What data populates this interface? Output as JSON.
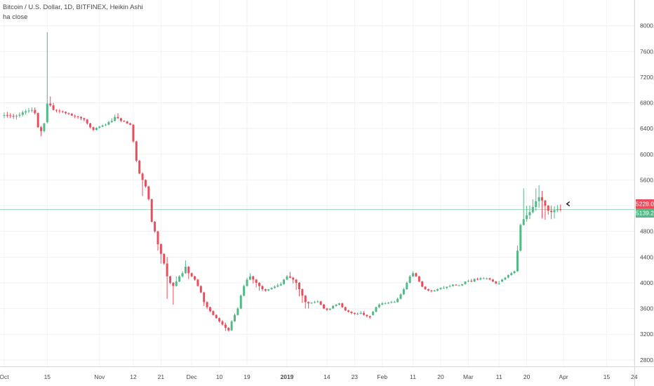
{
  "chart_data": {
    "type": "candlestick",
    "title": "Bitcoin / U.S. Dollar, 1D, BITFINEX, Heikin Ashi",
    "indicator": "ha close",
    "y_ticks": [
      8000,
      7600,
      7200,
      6800,
      6400,
      6000,
      5600,
      5200,
      4800,
      4400,
      4000,
      3600,
      3200,
      2800
    ],
    "y_tick_labels": [
      "8000.0",
      "7600.0",
      "7200.0",
      "6800.0",
      "6400.0",
      "6000.0",
      "5600.0",
      "5200.0",
      "4800.0",
      "4400.0",
      "4000.0",
      "3600.0",
      "3200.0",
      "2800.0"
    ],
    "ylim": [
      2700,
      8400
    ],
    "x_ticks": [
      {
        "label": "Oct",
        "day": 0,
        "bold": false
      },
      {
        "label": "15",
        "day": 14,
        "bold": false
      },
      {
        "label": "Nov",
        "day": 31,
        "bold": false
      },
      {
        "label": "12",
        "day": 42,
        "bold": false
      },
      {
        "label": "21",
        "day": 51,
        "bold": false
      },
      {
        "label": "Dec",
        "day": 61,
        "bold": false
      },
      {
        "label": "10",
        "day": 70,
        "bold": false
      },
      {
        "label": "19",
        "day": 79,
        "bold": false
      },
      {
        "label": "2019",
        "day": 92,
        "bold": true
      },
      {
        "label": "14",
        "day": 105,
        "bold": false
      },
      {
        "label": "23",
        "day": 114,
        "bold": false
      },
      {
        "label": "Feb",
        "day": 123,
        "bold": false
      },
      {
        "label": "11",
        "day": 133,
        "bold": false
      },
      {
        "label": "20",
        "day": 142,
        "bold": false
      },
      {
        "label": "Mar",
        "day": 151,
        "bold": false
      },
      {
        "label": "11",
        "day": 161,
        "bold": false
      },
      {
        "label": "20",
        "day": 170,
        "bold": false
      },
      {
        "label": "Apr",
        "day": 182,
        "bold": false
      },
      {
        "label": "15",
        "day": 196,
        "bold": false
      },
      {
        "label": "24",
        "day": 205,
        "bold": false
      }
    ],
    "up_color": "#53b987",
    "down_color": "#eb4d5c",
    "price_line": 5139.2,
    "price_labels": [
      {
        "value": 5228.0,
        "text": "5228.0",
        "color": "#eb4d5c"
      },
      {
        "value": 5139.2,
        "text": "5139.2",
        "color": "#53b987"
      }
    ],
    "candles_o": [
      6600,
      6610,
      6605,
      6598,
      6590,
      6600,
      6615,
      6650,
      6670,
      6680,
      6690,
      6640,
      6420,
      6360,
      6500,
      6790,
      6760,
      6690,
      6680,
      6670,
      6660,
      6640,
      6630,
      6600,
      6590,
      6580,
      6560,
      6540,
      6480,
      6420,
      6380,
      6410,
      6430,
      6450,
      6460,
      6500,
      6520,
      6580,
      6560,
      6520,
      6510,
      6480,
      6460,
      6200,
      5900,
      5700,
      5600,
      5500,
      5300,
      4950,
      4800,
      4600,
      4450,
      4300,
      4100,
      4000,
      3950,
      4020,
      4100,
      4150,
      4250,
      4150,
      4100,
      4050,
      3950,
      3850,
      3700,
      3620,
      3560,
      3500,
      3450,
      3400,
      3350,
      3300,
      3260,
      3400,
      3500,
      3600,
      3800,
      3950,
      4050,
      4100,
      4050,
      4000,
      3950,
      3900,
      3880,
      3900,
      3920,
      3940,
      3960,
      3980,
      4050,
      4100,
      4080,
      4050,
      4000,
      3900,
      3800,
      3700,
      3680,
      3690,
      3700,
      3710,
      3660,
      3600,
      3580,
      3600,
      3640,
      3660,
      3680,
      3620,
      3570,
      3550,
      3530,
      3520,
      3520,
      3530,
      3500,
      3480,
      3500,
      3550,
      3620,
      3660,
      3680,
      3680,
      3690,
      3700,
      3700,
      3750,
      3820,
      3900,
      4000,
      4100,
      4150,
      4100,
      4020,
      3940,
      3900,
      3880,
      3870,
      3880,
      3900,
      3920,
      3920,
      3940,
      3950,
      3970,
      3960,
      3960,
      3980,
      4020,
      4030,
      4020,
      4060,
      4050,
      4070,
      4070,
      4070,
      4050,
      4020,
      3990,
      4020,
      4050,
      4080,
      4120,
      4150,
      4180,
      4500,
      4900,
      4990,
      5050,
      5100,
      5180,
      5270,
      5330,
      5280,
      5200,
      5120,
      5100,
      5130,
      5145
    ],
    "candles_h": [
      6650,
      6660,
      6640,
      6630,
      6620,
      6650,
      6680,
      6700,
      6720,
      6730,
      6730,
      6650,
      6440,
      6490,
      7900,
      6900,
      6800,
      6700,
      6700,
      6680,
      6670,
      6650,
      6640,
      6620,
      6600,
      6590,
      6570,
      6550,
      6490,
      6430,
      6420,
      6440,
      6460,
      6480,
      6520,
      6560,
      6620,
      6640,
      6570,
      6530,
      6520,
      6490,
      6470,
      6210,
      5910,
      5720,
      5610,
      5510,
      5310,
      4960,
      4810,
      4610,
      4460,
      4400,
      4110,
      4010,
      4100,
      4120,
      4180,
      4350,
      4260,
      4160,
      4110,
      4060,
      3960,
      3860,
      3710,
      3630,
      3570,
      3510,
      3460,
      3420,
      3380,
      3310,
      3420,
      3520,
      3620,
      3820,
      3970,
      4080,
      4150,
      4110,
      4060,
      4010,
      3960,
      3910,
      3890,
      3930,
      3960,
      3990,
      4010,
      4060,
      4120,
      4170,
      4090,
      4060,
      4010,
      3910,
      3810,
      3710,
      3700,
      3720,
      3730,
      3720,
      3670,
      3610,
      3590,
      3650,
      3670,
      3690,
      3690,
      3630,
      3580,
      3560,
      3540,
      3540,
      3560,
      3560,
      3510,
      3490,
      3560,
      3630,
      3680,
      3700,
      3700,
      3700,
      3720,
      3720,
      3770,
      3840,
      3920,
      4020,
      4120,
      4180,
      4160,
      4110,
      4030,
      3950,
      3910,
      3890,
      3890,
      3910,
      3930,
      3950,
      3940,
      3970,
      3980,
      3980,
      3970,
      3980,
      4020,
      4050,
      4060,
      4070,
      4080,
      4090,
      4090,
      4080,
      4080,
      4060,
      4030,
      4030,
      4060,
      4090,
      4130,
      4170,
      4190,
      4580,
      4920,
      5470,
      5200,
      5200,
      5300,
      5470,
      5520,
      5430,
      5290,
      5210,
      5200,
      5190,
      5210,
      5220
    ],
    "candles_l": [
      6560,
      6570,
      6560,
      6550,
      6540,
      6570,
      6590,
      6620,
      6640,
      6650,
      6620,
      6410,
      6280,
      6340,
      6480,
      6740,
      6680,
      6650,
      6640,
      6640,
      6620,
      6610,
      6600,
      6560,
      6550,
      6530,
      6510,
      6460,
      6400,
      6360,
      6370,
      6400,
      6420,
      6440,
      6450,
      6490,
      6510,
      6550,
      6500,
      6500,
      6470,
      6450,
      6180,
      5880,
      5690,
      5350,
      5480,
      5280,
      4940,
      4780,
      4500,
      4300,
      4280,
      3750,
      3980,
      3660,
      3940,
      4010,
      4080,
      4140,
      4060,
      4090,
      4030,
      3940,
      3840,
      3640,
      3590,
      3540,
      3490,
      3440,
      3380,
      3330,
      3250,
      3240,
      3250,
      3390,
      3490,
      3590,
      3790,
      3940,
      4040,
      3990,
      3930,
      3880,
      3870,
      3860,
      3870,
      3890,
      3910,
      3930,
      3950,
      3970,
      4040,
      4070,
      3990,
      3890,
      3790,
      3690,
      3600,
      3600,
      3670,
      3680,
      3690,
      3650,
      3590,
      3560,
      3570,
      3590,
      3630,
      3650,
      3610,
      3560,
      3540,
      3510,
      3500,
      3500,
      3510,
      3490,
      3460,
      3440,
      3490,
      3540,
      3610,
      3650,
      3670,
      3670,
      3680,
      3690,
      3690,
      3740,
      3810,
      3890,
      3990,
      4090,
      4090,
      4010,
      3930,
      3890,
      3870,
      3850,
      3860,
      3870,
      3890,
      3910,
      3900,
      3930,
      3940,
      3960,
      3950,
      3950,
      3970,
      4010,
      4010,
      4010,
      4040,
      4040,
      4060,
      4050,
      4040,
      4010,
      3980,
      3970,
      4010,
      4040,
      4070,
      4110,
      4140,
      4170,
      4490,
      4890,
      4950,
      4990,
      5080,
      5120,
      5170,
      5000,
      4980,
      5060,
      4990,
      5000,
      5100,
      5110
    ],
    "candles_c": [
      6610,
      6605,
      6598,
      6590,
      6600,
      6615,
      6650,
      6670,
      6680,
      6690,
      6640,
      6420,
      6360,
      6480,
      6790,
      6760,
      6690,
      6680,
      6670,
      6660,
      6640,
      6630,
      6600,
      6590,
      6580,
      6560,
      6540,
      6480,
      6420,
      6380,
      6410,
      6430,
      6450,
      6460,
      6500,
      6520,
      6580,
      6560,
      6520,
      6510,
      6480,
      6460,
      6200,
      5900,
      5700,
      5600,
      5500,
      5300,
      4950,
      4800,
      4600,
      4450,
      4300,
      4100,
      4000,
      3950,
      4020,
      4100,
      4150,
      4250,
      4150,
      4100,
      4050,
      3950,
      3850,
      3700,
      3620,
      3560,
      3500,
      3450,
      3400,
      3350,
      3300,
      3260,
      3400,
      3500,
      3600,
      3800,
      3950,
      4050,
      4100,
      4050,
      4000,
      3950,
      3900,
      3880,
      3900,
      3920,
      3940,
      3960,
      3980,
      4050,
      4100,
      4080,
      4050,
      4000,
      3900,
      3800,
      3700,
      3680,
      3690,
      3700,
      3710,
      3660,
      3600,
      3580,
      3600,
      3640,
      3660,
      3680,
      3620,
      3570,
      3550,
      3530,
      3520,
      3520,
      3530,
      3500,
      3480,
      3460,
      3550,
      3620,
      3660,
      3680,
      3680,
      3690,
      3700,
      3700,
      3750,
      3820,
      3900,
      4000,
      4100,
      4150,
      4100,
      4020,
      3940,
      3900,
      3880,
      3870,
      3880,
      3900,
      3920,
      3920,
      3940,
      3950,
      3970,
      3960,
      3960,
      3980,
      4020,
      4030,
      4020,
      4060,
      4050,
      4070,
      4070,
      4070,
      4050,
      4020,
      3990,
      3990,
      4050,
      4080,
      4120,
      4150,
      4180,
      4500,
      4900,
      4990,
      5050,
      5100,
      5180,
      5270,
      5330,
      5280,
      5200,
      5120,
      5100,
      5130,
      5145,
      5139
    ]
  }
}
